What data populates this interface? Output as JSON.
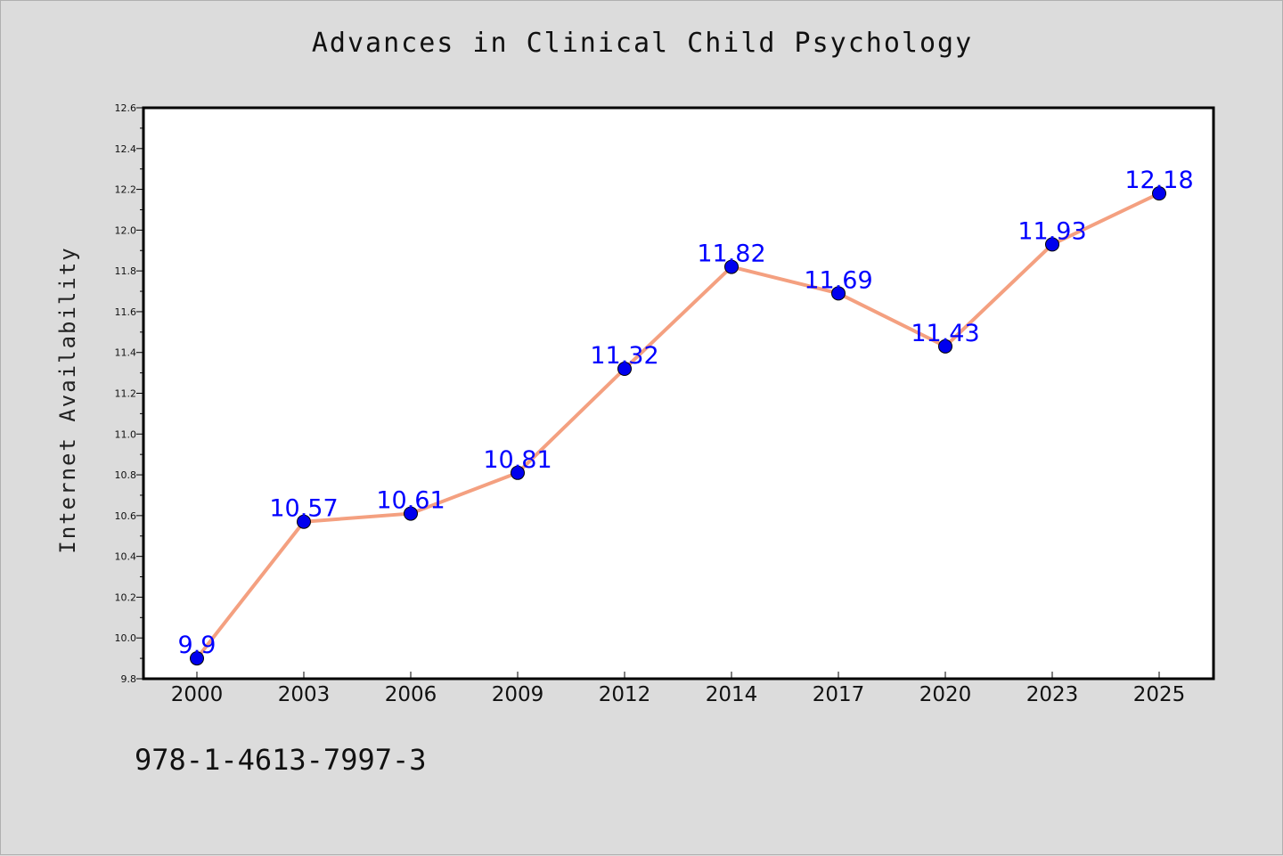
{
  "chart_data": {
    "type": "line",
    "title": "Advances in Clinical Child Psychology",
    "xlabel": "",
    "ylabel": "Internet Availability",
    "categories": [
      "2000",
      "2003",
      "2006",
      "2009",
      "2012",
      "2014",
      "2017",
      "2020",
      "2023",
      "2025"
    ],
    "series": [
      {
        "values": [
          9.9,
          10.57,
          10.61,
          10.81,
          11.32,
          11.82,
          11.69,
          11.43,
          11.93,
          12.18
        ],
        "labels": [
          "9.9",
          "10.57",
          "10.61",
          "10.81",
          "11.32",
          "11.82",
          "11.69",
          "11.43",
          "11.93",
          "12.18"
        ],
        "line_color": "#f4a080",
        "marker_color": "#0000ee",
        "label_color": "#0000ff"
      }
    ],
    "ylim": [
      9.8,
      12.6
    ],
    "yticks": [
      "9.8",
      "10.0",
      "10.2",
      "10.4",
      "10.6",
      "10.8",
      "11.0",
      "11.2",
      "11.4",
      "11.6",
      "11.8",
      "12.0",
      "12.2",
      "12.4",
      "12.6"
    ],
    "grid": false,
    "legend": "none"
  },
  "footer": {
    "code": "978-1-4613-7997-3"
  },
  "colors": {
    "background": "#dcdcdc",
    "plot_area": "#ffffff"
  }
}
